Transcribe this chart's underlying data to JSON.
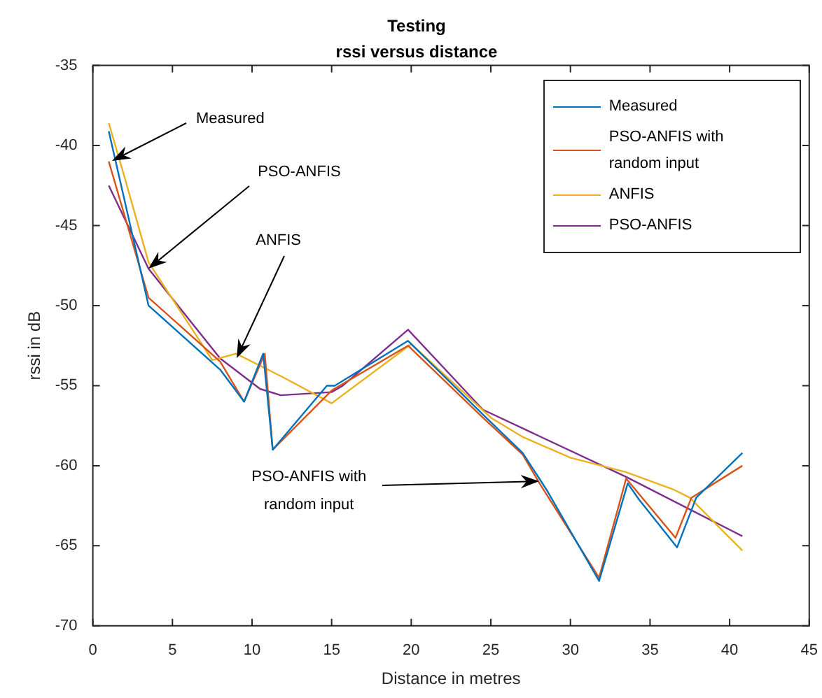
{
  "chart_data": {
    "type": "line",
    "title": "Testing",
    "subtitle": "rssi versus distance",
    "xlabel": "Distance in metres",
    "ylabel": "rssi in dB",
    "xlim": [
      0,
      45
    ],
    "xticks": [
      0,
      5,
      10,
      15,
      20,
      25,
      30,
      35,
      40,
      45
    ],
    "ylim": [
      -70,
      -35
    ],
    "yticks": [
      -70,
      -65,
      -60,
      -55,
      -50,
      -45,
      -40,
      -35
    ],
    "grid": false,
    "legend": "top right",
    "marker": "none",
    "line_style": "solid",
    "series": [
      {
        "name": "Measured",
        "color": "#0072bd",
        "x": [
          1,
          3.5,
          8,
          9.5,
          10.7,
          11.3,
          14.7,
          15.2,
          19.8,
          24.5,
          27,
          28.5,
          31.8,
          33.6,
          34.3,
          36.7,
          37.9,
          40.8
        ],
        "values": [
          -39.1,
          -50,
          -54,
          -56,
          -53,
          -59,
          -55,
          -55,
          -52.2,
          -56.8,
          -59.2,
          -61.5,
          -67.2,
          -61.1,
          -62.1,
          -65.1,
          -62,
          -59.2
        ]
      },
      {
        "name": "PSO-ANFIS with random input",
        "color": "#d95319",
        "x": [
          1,
          3.5,
          8,
          9.5,
          10.8,
          11.3,
          15,
          19.8,
          24.5,
          27,
          28,
          31.8,
          33.5,
          36.6,
          37.6,
          40.8
        ],
        "values": [
          -41,
          -49.5,
          -53.5,
          -56,
          -53,
          -59,
          -55.3,
          -52.5,
          -57,
          -59.3,
          -61,
          -67,
          -60.8,
          -64.5,
          -62,
          -60
        ]
      },
      {
        "name": "ANFIS",
        "color": "#edb120",
        "x": [
          1,
          2,
          3.5,
          7.5,
          9,
          12,
          15,
          20,
          25,
          27,
          30,
          33.5,
          36.5,
          37.5,
          40.8
        ],
        "values": [
          -38.6,
          -42,
          -47.3,
          -53.4,
          -53,
          -54.5,
          -56.1,
          -52.4,
          -57,
          -58.2,
          -59.5,
          -60.4,
          -61.5,
          -62,
          -65.3
        ]
      },
      {
        "name": "PSO-ANFIS",
        "color": "#7e2f8e",
        "x": [
          1,
          3.5,
          8,
          10.5,
          11.8,
          15,
          15.7,
          19.8,
          24.5,
          33.5,
          40.8
        ],
        "values": [
          -42.5,
          -47.7,
          -53.3,
          -55.2,
          -55.6,
          -55.4,
          -55,
          -51.5,
          -56.5,
          -60.7,
          -64.4
        ]
      }
    ],
    "annotations": [
      {
        "text": "Measured",
        "x": 1.2,
        "y": -41
      },
      {
        "text": "PSO-ANFIS",
        "x": 3.5,
        "y": -47.7
      },
      {
        "text": "ANFIS",
        "x": 9,
        "y": -53.3
      },
      {
        "text": "PSO-ANFIS with random input",
        "x": 28,
        "y": -61
      }
    ]
  }
}
